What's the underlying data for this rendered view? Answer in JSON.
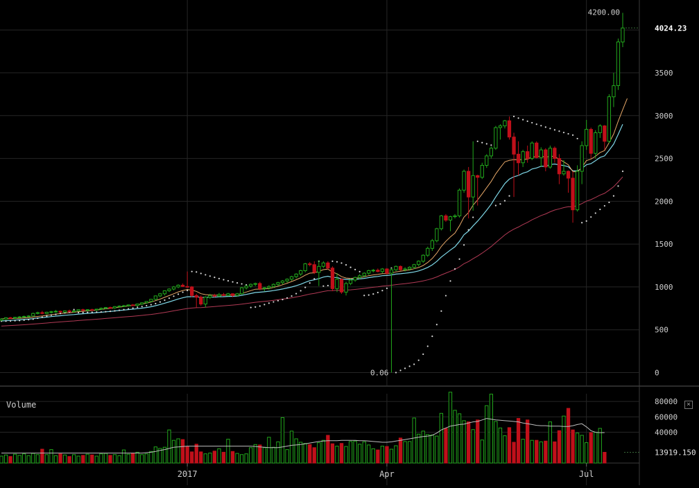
{
  "colors": {
    "background": "#000000",
    "grid": "#262626",
    "up": "#22a81c",
    "down": "#c0101a",
    "ema_fast": "#e7a868",
    "ema_mid": "#7fd8e8",
    "ema_slow": "#b23a55",
    "sar": "#d9d9d9",
    "axis_text": "#cfcfcf",
    "volume_ma": "#bdbdbd"
  },
  "volume_panel": {
    "title": "Volume",
    "close_icon": "close-icon"
  },
  "chart_data": {
    "type": "candlestick",
    "price_axis": {
      "ylim": [
        -150,
        4350
      ],
      "ticks": [
        0,
        500,
        1000,
        1500,
        2000,
        2500,
        3000,
        3500
      ],
      "tick_labels": [
        "0",
        "500",
        "1000",
        "1500",
        "2000",
        "2500",
        "3000",
        "3500"
      ],
      "last_price_label": "4024.23",
      "last_price": 4024.23,
      "high_label": "4200.00",
      "low_label": "0.06"
    },
    "volume_axis": {
      "ylim": [
        0,
        90000
      ],
      "ticks": [
        40000,
        60000,
        80000
      ],
      "tick_labels": [
        "40000",
        "60000",
        "80000"
      ],
      "last_volume_label": "13919.150",
      "last_volume": 13919.15
    },
    "x_axis": {
      "labels": [
        "2017",
        "Apr",
        "Jul"
      ],
      "label_candle_index": [
        41,
        85,
        129
      ]
    },
    "candles": [
      {
        "o": 610,
        "h": 635,
        "l": 600,
        "c": 625
      },
      {
        "o": 625,
        "h": 645,
        "l": 615,
        "c": 640
      },
      {
        "o": 640,
        "h": 650,
        "l": 625,
        "c": 635
      },
      {
        "o": 635,
        "h": 650,
        "l": 625,
        "c": 645
      },
      {
        "o": 645,
        "h": 660,
        "l": 635,
        "c": 650
      },
      {
        "o": 650,
        "h": 665,
        "l": 640,
        "c": 655
      },
      {
        "o": 655,
        "h": 670,
        "l": 645,
        "c": 660
      },
      {
        "o": 660,
        "h": 700,
        "l": 655,
        "c": 690
      },
      {
        "o": 690,
        "h": 710,
        "l": 680,
        "c": 700
      },
      {
        "o": 700,
        "h": 720,
        "l": 680,
        "c": 690
      },
      {
        "o": 690,
        "h": 710,
        "l": 680,
        "c": 705
      },
      {
        "o": 705,
        "h": 720,
        "l": 690,
        "c": 710
      },
      {
        "o": 710,
        "h": 730,
        "l": 700,
        "c": 715
      },
      {
        "o": 715,
        "h": 725,
        "l": 700,
        "c": 705
      },
      {
        "o": 705,
        "h": 725,
        "l": 700,
        "c": 720
      },
      {
        "o": 720,
        "h": 735,
        "l": 705,
        "c": 710
      },
      {
        "o": 710,
        "h": 725,
        "l": 700,
        "c": 720
      },
      {
        "o": 720,
        "h": 740,
        "l": 715,
        "c": 735
      },
      {
        "o": 735,
        "h": 745,
        "l": 720,
        "c": 725
      },
      {
        "o": 725,
        "h": 740,
        "l": 715,
        "c": 735
      },
      {
        "o": 735,
        "h": 745,
        "l": 720,
        "c": 730
      },
      {
        "o": 730,
        "h": 745,
        "l": 720,
        "c": 740
      },
      {
        "o": 740,
        "h": 760,
        "l": 730,
        "c": 750
      },
      {
        "o": 750,
        "h": 765,
        "l": 740,
        "c": 760
      },
      {
        "o": 760,
        "h": 770,
        "l": 745,
        "c": 755
      },
      {
        "o": 755,
        "h": 775,
        "l": 745,
        "c": 770
      },
      {
        "o": 770,
        "h": 785,
        "l": 760,
        "c": 775
      },
      {
        "o": 775,
        "h": 790,
        "l": 765,
        "c": 780
      },
      {
        "o": 780,
        "h": 795,
        "l": 770,
        "c": 790
      },
      {
        "o": 790,
        "h": 800,
        "l": 775,
        "c": 785
      },
      {
        "o": 785,
        "h": 805,
        "l": 775,
        "c": 800
      },
      {
        "o": 800,
        "h": 820,
        "l": 790,
        "c": 815
      },
      {
        "o": 815,
        "h": 835,
        "l": 805,
        "c": 830
      },
      {
        "o": 830,
        "h": 860,
        "l": 820,
        "c": 855
      },
      {
        "o": 855,
        "h": 900,
        "l": 845,
        "c": 895
      },
      {
        "o": 895,
        "h": 930,
        "l": 880,
        "c": 920
      },
      {
        "o": 920,
        "h": 960,
        "l": 900,
        "c": 955
      },
      {
        "o": 955,
        "h": 985,
        "l": 940,
        "c": 975
      },
      {
        "o": 975,
        "h": 1010,
        "l": 960,
        "c": 1000
      },
      {
        "o": 1000,
        "h": 1030,
        "l": 985,
        "c": 1020
      },
      {
        "o": 1020,
        "h": 1040,
        "l": 1000,
        "c": 1005
      },
      {
        "o": 1005,
        "h": 1180,
        "l": 990,
        "c": 1000
      },
      {
        "o": 1000,
        "h": 1010,
        "l": 880,
        "c": 900
      },
      {
        "o": 900,
        "h": 920,
        "l": 760,
        "c": 880
      },
      {
        "o": 880,
        "h": 900,
        "l": 780,
        "c": 800
      },
      {
        "o": 800,
        "h": 890,
        "l": 760,
        "c": 880
      },
      {
        "o": 880,
        "h": 920,
        "l": 860,
        "c": 900
      },
      {
        "o": 900,
        "h": 920,
        "l": 880,
        "c": 895
      },
      {
        "o": 895,
        "h": 930,
        "l": 880,
        "c": 910
      },
      {
        "o": 910,
        "h": 930,
        "l": 890,
        "c": 900
      },
      {
        "o": 900,
        "h": 930,
        "l": 890,
        "c": 920
      },
      {
        "o": 920,
        "h": 925,
        "l": 880,
        "c": 900
      },
      {
        "o": 900,
        "h": 930,
        "l": 890,
        "c": 920
      },
      {
        "o": 920,
        "h": 1000,
        "l": 910,
        "c": 990
      },
      {
        "o": 990,
        "h": 1020,
        "l": 970,
        "c": 1010
      },
      {
        "o": 1010,
        "h": 1040,
        "l": 990,
        "c": 1030
      },
      {
        "o": 1030,
        "h": 1050,
        "l": 1010,
        "c": 1040
      },
      {
        "o": 1040,
        "h": 1060,
        "l": 960,
        "c": 980
      },
      {
        "o": 980,
        "h": 1000,
        "l": 950,
        "c": 990
      },
      {
        "o": 990,
        "h": 1020,
        "l": 970,
        "c": 1005
      },
      {
        "o": 1005,
        "h": 1040,
        "l": 990,
        "c": 1030
      },
      {
        "o": 1030,
        "h": 1060,
        "l": 1010,
        "c": 1050
      },
      {
        "o": 1050,
        "h": 1080,
        "l": 1030,
        "c": 1070
      },
      {
        "o": 1070,
        "h": 1100,
        "l": 1050,
        "c": 1090
      },
      {
        "o": 1090,
        "h": 1130,
        "l": 1070,
        "c": 1120
      },
      {
        "o": 1120,
        "h": 1160,
        "l": 1100,
        "c": 1150
      },
      {
        "o": 1150,
        "h": 1200,
        "l": 1130,
        "c": 1190
      },
      {
        "o": 1190,
        "h": 1280,
        "l": 1170,
        "c": 1270
      },
      {
        "o": 1270,
        "h": 1290,
        "l": 1240,
        "c": 1260
      },
      {
        "o": 1260,
        "h": 1300,
        "l": 1150,
        "c": 1170
      },
      {
        "o": 1170,
        "h": 1310,
        "l": 1010,
        "c": 1240
      },
      {
        "o": 1240,
        "h": 1300,
        "l": 1220,
        "c": 1280
      },
      {
        "o": 1280,
        "h": 1300,
        "l": 1200,
        "c": 1220
      },
      {
        "o": 1220,
        "h": 1240,
        "l": 950,
        "c": 980
      },
      {
        "o": 980,
        "h": 1160,
        "l": 940,
        "c": 1090
      },
      {
        "o": 1090,
        "h": 1100,
        "l": 920,
        "c": 940
      },
      {
        "o": 940,
        "h": 1060,
        "l": 900,
        "c": 1040
      },
      {
        "o": 1040,
        "h": 1100,
        "l": 1020,
        "c": 1080
      },
      {
        "o": 1080,
        "h": 1120,
        "l": 1060,
        "c": 1110
      },
      {
        "o": 1110,
        "h": 1150,
        "l": 1090,
        "c": 1130
      },
      {
        "o": 1130,
        "h": 1170,
        "l": 1110,
        "c": 1160
      },
      {
        "o": 1160,
        "h": 1200,
        "l": 1140,
        "c": 1190
      },
      {
        "o": 1190,
        "h": 1210,
        "l": 1170,
        "c": 1195
      },
      {
        "o": 1195,
        "h": 1215,
        "l": 1170,
        "c": 1180
      },
      {
        "o": 1180,
        "h": 1220,
        "l": 1160,
        "c": 1210
      },
      {
        "o": 1210,
        "h": 1220,
        "l": 1140,
        "c": 1160
      },
      {
        "o": 1160,
        "h": 1220,
        "l": 0.06,
        "c": 1200
      },
      {
        "o": 1200,
        "h": 1250,
        "l": 1185,
        "c": 1240
      },
      {
        "o": 1240,
        "h": 1250,
        "l": 1190,
        "c": 1200
      },
      {
        "o": 1200,
        "h": 1230,
        "l": 1180,
        "c": 1210
      },
      {
        "o": 1210,
        "h": 1240,
        "l": 1190,
        "c": 1230
      },
      {
        "o": 1230,
        "h": 1270,
        "l": 1210,
        "c": 1260
      },
      {
        "o": 1260,
        "h": 1310,
        "l": 1240,
        "c": 1300
      },
      {
        "o": 1300,
        "h": 1380,
        "l": 1280,
        "c": 1370
      },
      {
        "o": 1370,
        "h": 1470,
        "l": 1350,
        "c": 1450
      },
      {
        "o": 1450,
        "h": 1560,
        "l": 1420,
        "c": 1540
      },
      {
        "o": 1540,
        "h": 1690,
        "l": 1520,
        "c": 1680
      },
      {
        "o": 1680,
        "h": 1840,
        "l": 1660,
        "c": 1830
      },
      {
        "o": 1830,
        "h": 1850,
        "l": 1760,
        "c": 1780
      },
      {
        "o": 1780,
        "h": 1830,
        "l": 1650,
        "c": 1820
      },
      {
        "o": 1820,
        "h": 1850,
        "l": 1800,
        "c": 1830
      },
      {
        "o": 1830,
        "h": 2150,
        "l": 1810,
        "c": 2130
      },
      {
        "o": 2130,
        "h": 2370,
        "l": 2100,
        "c": 2350
      },
      {
        "o": 2350,
        "h": 2400,
        "l": 1800,
        "c": 2050
      },
      {
        "o": 2050,
        "h": 2700,
        "l": 1890,
        "c": 2300
      },
      {
        "o": 2300,
        "h": 2310,
        "l": 1950,
        "c": 2280
      },
      {
        "o": 2280,
        "h": 2450,
        "l": 2260,
        "c": 2420
      },
      {
        "o": 2420,
        "h": 2550,
        "l": 2390,
        "c": 2530
      },
      {
        "o": 2530,
        "h": 2640,
        "l": 2500,
        "c": 2620
      },
      {
        "o": 2620,
        "h": 2880,
        "l": 2600,
        "c": 2860
      },
      {
        "o": 2860,
        "h": 2900,
        "l": 2720,
        "c": 2880
      },
      {
        "o": 2880,
        "h": 2950,
        "l": 2850,
        "c": 2940
      },
      {
        "o": 2940,
        "h": 2990,
        "l": 2720,
        "c": 2750
      },
      {
        "o": 2750,
        "h": 2800,
        "l": 2050,
        "c": 2550
      },
      {
        "o": 2550,
        "h": 2700,
        "l": 2300,
        "c": 2450
      },
      {
        "o": 2450,
        "h": 2600,
        "l": 2400,
        "c": 2580
      },
      {
        "o": 2580,
        "h": 2650,
        "l": 2450,
        "c": 2500
      },
      {
        "o": 2500,
        "h": 2700,
        "l": 2480,
        "c": 2680
      },
      {
        "o": 2680,
        "h": 2700,
        "l": 2500,
        "c": 2510
      },
      {
        "o": 2510,
        "h": 2630,
        "l": 2400,
        "c": 2600
      },
      {
        "o": 2600,
        "h": 2620,
        "l": 2350,
        "c": 2400
      },
      {
        "o": 2400,
        "h": 2650,
        "l": 2380,
        "c": 2620
      },
      {
        "o": 2620,
        "h": 2640,
        "l": 2450,
        "c": 2500
      },
      {
        "o": 2500,
        "h": 2550,
        "l": 2200,
        "c": 2320
      },
      {
        "o": 2320,
        "h": 2480,
        "l": 2300,
        "c": 2350
      },
      {
        "o": 2350,
        "h": 2360,
        "l": 2100,
        "c": 2270
      },
      {
        "o": 2270,
        "h": 2350,
        "l": 1750,
        "c": 1900
      },
      {
        "o": 1900,
        "h": 2420,
        "l": 1880,
        "c": 2350
      },
      {
        "o": 2350,
        "h": 2700,
        "l": 2200,
        "c": 2650
      },
      {
        "o": 2650,
        "h": 2950,
        "l": 2600,
        "c": 2840
      },
      {
        "o": 2840,
        "h": 2860,
        "l": 2500,
        "c": 2560
      },
      {
        "o": 2560,
        "h": 2830,
        "l": 2500,
        "c": 2800
      },
      {
        "o": 2800,
        "h": 2900,
        "l": 2740,
        "c": 2880
      },
      {
        "o": 2880,
        "h": 2890,
        "l": 2600,
        "c": 2700
      },
      {
        "o": 2700,
        "h": 3250,
        "l": 2680,
        "c": 3220
      },
      {
        "o": 3220,
        "h": 3500,
        "l": 3100,
        "c": 3350
      },
      {
        "o": 3350,
        "h": 3900,
        "l": 3300,
        "c": 3860
      },
      {
        "o": 3860,
        "h": 4200,
        "l": 3800,
        "c": 4024.23
      }
    ],
    "volumes": [
      9000,
      10500,
      8500,
      11500,
      10000,
      12000,
      9500,
      12500,
      11000,
      18000,
      11000,
      17500,
      9500,
      12000,
      10500,
      8500,
      11000,
      9000,
      10000,
      11500,
      10500,
      9000,
      12000,
      12500,
      10000,
      11000,
      9500,
      17000,
      11500,
      13000,
      14000,
      11000,
      12000,
      15000,
      21000,
      19000,
      20500,
      43000,
      29500,
      31500,
      30500,
      21500,
      14500,
      24500,
      14500,
      12000,
      13000,
      15500,
      18500,
      14000,
      31000,
      15000,
      12500,
      11000,
      12000,
      20000,
      24000,
      23500,
      20000,
      33500,
      20500,
      27500,
      59000,
      17500,
      41500,
      31500,
      27000,
      25500,
      24000,
      20000,
      26500,
      29500,
      36000,
      25000,
      22000,
      25500,
      21500,
      28000,
      28500,
      24500,
      27500,
      23500,
      18500,
      17000,
      22000,
      21500,
      18000,
      22500,
      32500,
      28000,
      28000,
      58500,
      37500,
      41500,
      37000,
      36500,
      35000,
      64500,
      45000,
      92000,
      68500,
      64000,
      55000,
      53500,
      43500,
      56000,
      30000,
      74500,
      89500,
      54000,
      45500,
      35500,
      46000,
      27000,
      58000,
      31000,
      56000,
      29500,
      29500,
      27500,
      28500,
      53500,
      27500,
      42000,
      61000,
      71000,
      43000,
      39000,
      36000,
      26500,
      39500,
      40000,
      45000,
      13919.15
    ],
    "volume_ma": [
      13000,
      13000,
      13000,
      13000,
      13000,
      13000,
      13000,
      13000,
      13000,
      13000,
      13000,
      13000,
      13000,
      13000,
      13000,
      13000,
      13000,
      13000,
      13000,
      13000,
      13000,
      13000,
      13000,
      13000,
      13000,
      13000,
      13000,
      13000,
      13000,
      13000,
      13000,
      13000,
      13500,
      14000,
      15000,
      16500,
      17500,
      19000,
      20500,
      21000,
      21500,
      22000,
      22000,
      22000,
      22000,
      22000,
      22000,
      22000,
      22000,
      22000,
      22000,
      22000,
      22000,
      22000,
      22000,
      22000,
      21500,
      21000,
      20500,
      20000,
      20000,
      20000,
      21000,
      22000,
      23000,
      23500,
      24000,
      25000,
      26000,
      27000,
      28000,
      28500,
      29000,
      29000,
      29000,
      29500,
      29500,
      29500,
      29500,
      29000,
      29000,
      28500,
      28000,
      27500,
      27000,
      27000,
      27500,
      28500,
      29500,
      30500,
      31500,
      32500,
      33500,
      34500,
      35000,
      36000,
      39000,
      43000,
      45500,
      48000,
      49000,
      50000,
      50500,
      52000,
      53500,
      54000,
      56000,
      58000,
      57000,
      56000,
      55500,
      55000,
      54500,
      54000,
      53500,
      52000,
      51000,
      50000,
      49000,
      48500,
      48500,
      48000,
      48000,
      48000,
      47500,
      47500,
      48500,
      50000,
      51000,
      47000,
      42000,
      40000,
      39500,
      39500
    ],
    "ema_fast": [
      628,
      628,
      629,
      632,
      634,
      637,
      641,
      648,
      655,
      660,
      668,
      675,
      683,
      688,
      695,
      699,
      704,
      711,
      715,
      721,
      724,
      730,
      737,
      744,
      749,
      757,
      764,
      771,
      779,
      784,
      792,
      801,
      811,
      823,
      840,
      858,
      879,
      899,
      920,
      942,
      958,
      970,
      962,
      948,
      921,
      910,
      906,
      903,
      904,
      903,
      906,
      905,
      908,
      924,
      940,
      957,
      973,
      975,
      977,
      982,
      994,
      1008,
      1025,
      1043,
      1063,
      1084,
      1107,
      1138,
      1161,
      1164,
      1181,
      1202,
      1208,
      1173,
      1154,
      1120,
      1104,
      1100,
      1103,
      1108,
      1118,
      1131,
      1140,
      1146,
      1155,
      1155,
      1162,
      1176,
      1184,
      1191,
      1200,
      1212,
      1227,
      1250,
      1286,
      1332,
      1395,
      1473,
      1532,
      1584,
      1628,
      1714,
      1814,
      1868,
      1955,
      2016,
      2086,
      2159,
      2231,
      2320,
      2392,
      2460,
      2478,
      2485,
      2483,
      2488,
      2491,
      2519,
      2518,
      2530,
      2511,
      2528,
      2522,
      2490,
      2461,
      2426,
      2345,
      2345,
      2396,
      2475,
      2492,
      2526,
      2569,
      2592,
      2684,
      2785,
      2935,
      3070,
      3200
    ]
  }
}
